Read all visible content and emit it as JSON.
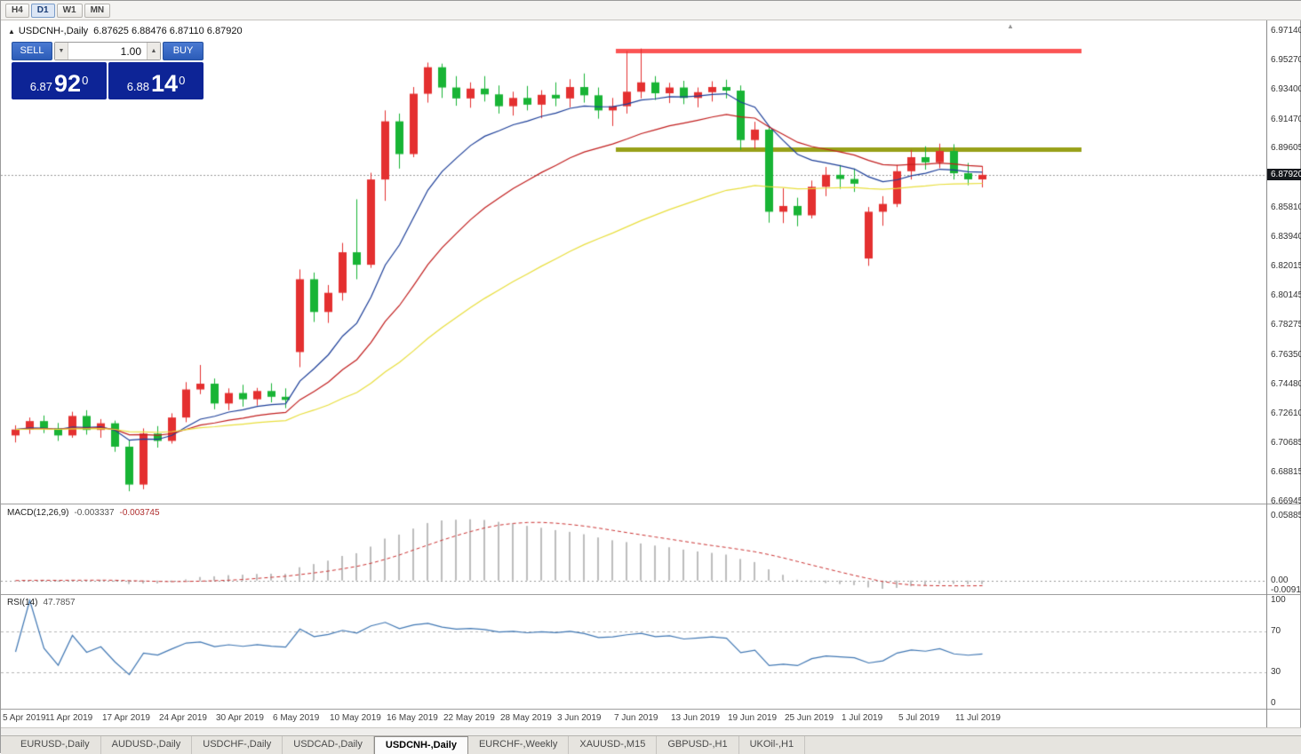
{
  "toolbar": {
    "timeframes": [
      {
        "label": "H4",
        "active": false
      },
      {
        "label": "D1",
        "active": true
      },
      {
        "label": "W1",
        "active": false
      },
      {
        "label": "MN",
        "active": false
      }
    ]
  },
  "chart_title": {
    "symbol": "USDCNH-,Daily",
    "ohlc": "6.87625 6.88476 6.87110 6.87920"
  },
  "one_click": {
    "sell_label": "SELL",
    "buy_label": "BUY",
    "volume": "1.00",
    "sell_price": {
      "prefix": "6.87",
      "pips": "92",
      "pipette": "0"
    },
    "buy_price": {
      "prefix": "6.88",
      "pips": "14",
      "pipette": "0"
    }
  },
  "tabs": [
    {
      "label": "EURUSD-,Daily",
      "active": false
    },
    {
      "label": "AUDUSD-,Daily",
      "active": false
    },
    {
      "label": "USDCHF-,Daily",
      "active": false
    },
    {
      "label": "USDCAD-,Daily",
      "active": false
    },
    {
      "label": "USDCNH-,Daily",
      "active": true
    },
    {
      "label": "EURCHF-,Weekly",
      "active": false
    },
    {
      "label": "XAUUSD-,M15",
      "active": false
    },
    {
      "label": "GBPUSD-,H1",
      "active": false
    },
    {
      "label": "UKOil-,H1",
      "active": false
    }
  ],
  "chart_data": {
    "type": "candlestick",
    "symbol": "USDCNH",
    "timeframe": "Daily",
    "y_axis": {
      "max": 6.9714,
      "min": 6.66945
    },
    "price_ticks": [
      "6.97140",
      "6.95270",
      "6.93400",
      "6.91470",
      "6.89605",
      "6.85810",
      "6.83940",
      "6.82015",
      "6.80145",
      "6.78275",
      "6.76350",
      "6.74480",
      "6.72610",
      "6.70685",
      "6.68815",
      "6.66945"
    ],
    "current_price": 6.8792,
    "current_price_label": "6.87920",
    "colors": {
      "bull": "#e43030",
      "bear": "#18b435",
      "resistance": "#fb5454",
      "support": "#98a018",
      "current_line": "#9a9a9a",
      "macd_hist": "#bdbdbd",
      "macd_signal": "#cc3333",
      "rsi_line": "#4178b4"
    },
    "moving_averages": [
      {
        "period": 10,
        "color": "#1d3f99"
      },
      {
        "period": 20,
        "color": "#c21f1f"
      },
      {
        "period": 45,
        "color": "#e9df3e"
      }
    ],
    "levels": [
      {
        "name": "resistance-line",
        "price": 6.959,
        "from_bar": 43,
        "to_bar": 75,
        "color": "#fb5454",
        "thickness": 5
      },
      {
        "name": "support-line",
        "price": 6.8956,
        "from_bar": 43,
        "to_bar": 75,
        "color": "#98a018",
        "thickness": 5
      }
    ],
    "date_ticks": [
      {
        "label": "5 Apr 2019",
        "bar": 0
      },
      {
        "label": "11 Apr 2019",
        "bar": 4
      },
      {
        "label": "17 Apr 2019",
        "bar": 8
      },
      {
        "label": "24 Apr 2019",
        "bar": 12
      },
      {
        "label": "30 Apr 2019",
        "bar": 16
      },
      {
        "label": "6 May 2019",
        "bar": 20
      },
      {
        "label": "10 May 2019",
        "bar": 24
      },
      {
        "label": "16 May 2019",
        "bar": 28
      },
      {
        "label": "22 May 2019",
        "bar": 32
      },
      {
        "label": "28 May 2019",
        "bar": 36
      },
      {
        "label": "3 Jun 2019",
        "bar": 40
      },
      {
        "label": "7 Jun 2019",
        "bar": 44
      },
      {
        "label": "13 Jun 2019",
        "bar": 48
      },
      {
        "label": "19 Jun 2019",
        "bar": 52
      },
      {
        "label": "25 Jun 2019",
        "bar": 56
      },
      {
        "label": "1 Jul 2019",
        "bar": 60
      },
      {
        "label": "5 Jul 2019",
        "bar": 64
      },
      {
        "label": "11 Jul 2019",
        "bar": 68
      }
    ],
    "macd": {
      "name": "MACD(12,26,9)",
      "fast": 12,
      "slow": 26,
      "signal": 9,
      "value_main": "-0.003337",
      "value_signal": "-0.003745",
      "axis_labels": [
        "0.058851",
        "0.00",
        "-0.009116"
      ],
      "scale_max": 0.058851,
      "scale_min": -0.009116
    },
    "rsi": {
      "name": "RSI(14)",
      "period": 14,
      "value": "47.7857",
      "axis_labels": [
        "100",
        "70",
        "30",
        "0"
      ],
      "guide_levels": [
        70,
        30
      ]
    },
    "candles": [
      {
        "d": "2019.04.05",
        "o": 6.712,
        "h": 6.7185,
        "l": 6.7075,
        "c": 6.7158
      },
      {
        "d": "2019.04.08",
        "o": 6.7158,
        "h": 6.7235,
        "l": 6.713,
        "c": 6.7212
      },
      {
        "d": "2019.04.09",
        "o": 6.7212,
        "h": 6.7248,
        "l": 6.7135,
        "c": 6.7165
      },
      {
        "d": "2019.04.10",
        "o": 6.7165,
        "h": 6.72,
        "l": 6.7085,
        "c": 6.712
      },
      {
        "d": "2019.04.11",
        "o": 6.712,
        "h": 6.7272,
        "l": 6.7105,
        "c": 6.7245
      },
      {
        "d": "2019.04.12",
        "o": 6.7245,
        "h": 6.7282,
        "l": 6.7125,
        "c": 6.7155
      },
      {
        "d": "2019.04.15",
        "o": 6.7155,
        "h": 6.7225,
        "l": 6.7105,
        "c": 6.7198
      },
      {
        "d": "2019.04.16",
        "o": 6.7198,
        "h": 6.7215,
        "l": 6.7015,
        "c": 6.7048
      },
      {
        "d": "2019.04.17",
        "o": 6.7048,
        "h": 6.7092,
        "l": 6.6762,
        "c": 6.6805
      },
      {
        "d": "2019.04.18",
        "o": 6.6805,
        "h": 6.7165,
        "l": 6.6775,
        "c": 6.7132
      },
      {
        "d": "2019.04.22",
        "o": 6.7132,
        "h": 6.718,
        "l": 6.7042,
        "c": 6.7085
      },
      {
        "d": "2019.04.23",
        "o": 6.7085,
        "h": 6.7262,
        "l": 6.7068,
        "c": 6.7235
      },
      {
        "d": "2019.04.24",
        "o": 6.7235,
        "h": 6.7462,
        "l": 6.7205,
        "c": 6.7415
      },
      {
        "d": "2019.04.25",
        "o": 6.7415,
        "h": 6.7572,
        "l": 6.7385,
        "c": 6.7452
      },
      {
        "d": "2019.04.26",
        "o": 6.7452,
        "h": 6.7485,
        "l": 6.7288,
        "c": 6.7325
      },
      {
        "d": "2019.04.29",
        "o": 6.7325,
        "h": 6.7422,
        "l": 6.7282,
        "c": 6.7392
      },
      {
        "d": "2019.04.30",
        "o": 6.7392,
        "h": 6.7445,
        "l": 6.7305,
        "c": 6.7352
      },
      {
        "d": "2019.05.01",
        "o": 6.7352,
        "h": 6.7425,
        "l": 6.7312,
        "c": 6.7405
      },
      {
        "d": "2019.05.02",
        "o": 6.7405,
        "h": 6.7455,
        "l": 6.7332,
        "c": 6.7368
      },
      {
        "d": "2019.05.03",
        "o": 6.7368,
        "h": 6.7422,
        "l": 6.7295,
        "c": 6.7348
      },
      {
        "d": "2019.05.06",
        "o": 6.7655,
        "h": 6.8185,
        "l": 6.7558,
        "c": 6.8122
      },
      {
        "d": "2019.05.07",
        "o": 6.8122,
        "h": 6.8165,
        "l": 6.7848,
        "c": 6.7912
      },
      {
        "d": "2019.05.08",
        "o": 6.7912,
        "h": 6.8085,
        "l": 6.7842,
        "c": 6.8035
      },
      {
        "d": "2019.05.09",
        "o": 6.8035,
        "h": 6.8355,
        "l": 6.7985,
        "c": 6.8295
      },
      {
        "d": "2019.05.10",
        "o": 6.8295,
        "h": 6.8635,
        "l": 6.8122,
        "c": 6.8215
      },
      {
        "d": "2019.05.13",
        "o": 6.8215,
        "h": 6.8805,
        "l": 6.8195,
        "c": 6.8762
      },
      {
        "d": "2019.05.14",
        "o": 6.8762,
        "h": 6.9205,
        "l": 6.8625,
        "c": 6.9135
      },
      {
        "d": "2019.05.15",
        "o": 6.9135,
        "h": 6.9185,
        "l": 6.8832,
        "c": 6.8925
      },
      {
        "d": "2019.05.16",
        "o": 6.8925,
        "h": 6.9355,
        "l": 6.8905,
        "c": 6.9312
      },
      {
        "d": "2019.05.17",
        "o": 6.9312,
        "h": 6.9512,
        "l": 6.9255,
        "c": 6.9482
      },
      {
        "d": "2019.05.20",
        "o": 6.9482,
        "h": 6.9505,
        "l": 6.9285,
        "c": 6.9352
      },
      {
        "d": "2019.05.21",
        "o": 6.9352,
        "h": 6.9425,
        "l": 6.9235,
        "c": 6.9282
      },
      {
        "d": "2019.05.22",
        "o": 6.9282,
        "h": 6.9385,
        "l": 6.9222,
        "c": 6.9345
      },
      {
        "d": "2019.05.23",
        "o": 6.9345,
        "h": 6.9425,
        "l": 6.9262,
        "c": 6.9308
      },
      {
        "d": "2019.05.24",
        "o": 6.9308,
        "h": 6.9365,
        "l": 6.9185,
        "c": 6.9232
      },
      {
        "d": "2019.05.27",
        "o": 6.9232,
        "h": 6.9325,
        "l": 6.9172,
        "c": 6.9285
      },
      {
        "d": "2019.05.28",
        "o": 6.9285,
        "h": 6.9362,
        "l": 6.9205,
        "c": 6.9242
      },
      {
        "d": "2019.05.29",
        "o": 6.9242,
        "h": 6.9335,
        "l": 6.9155,
        "c": 6.9305
      },
      {
        "d": "2019.05.30",
        "o": 6.9305,
        "h": 6.9385,
        "l": 6.9232,
        "c": 6.9282
      },
      {
        "d": "2019.05.31",
        "o": 6.9282,
        "h": 6.9405,
        "l": 6.9225,
        "c": 6.9355
      },
      {
        "d": "2019.06.03",
        "o": 6.9355,
        "h": 6.9442,
        "l": 6.9255,
        "c": 6.9302
      },
      {
        "d": "2019.06.04",
        "o": 6.9302,
        "h": 6.9352,
        "l": 6.9152,
        "c": 6.9205
      },
      {
        "d": "2019.06.05",
        "o": 6.9205,
        "h": 6.9285,
        "l": 6.9105,
        "c": 6.9232
      },
      {
        "d": "2019.06.06",
        "o": 6.9232,
        "h": 6.9585,
        "l": 6.9185,
        "c": 6.9325
      },
      {
        "d": "2019.06.07",
        "o": 6.9325,
        "h": 6.9602,
        "l": 6.9282,
        "c": 6.9385
      },
      {
        "d": "2019.06.10",
        "o": 6.9385,
        "h": 6.9425,
        "l": 6.9272,
        "c": 6.9315
      },
      {
        "d": "2019.06.11",
        "o": 6.9315,
        "h": 6.9382,
        "l": 6.9252,
        "c": 6.9352
      },
      {
        "d": "2019.06.12",
        "o": 6.9352,
        "h": 6.9395,
        "l": 6.9245,
        "c": 6.9285
      },
      {
        "d": "2019.06.13",
        "o": 6.9285,
        "h": 6.9352,
        "l": 6.9225,
        "c": 6.9322
      },
      {
        "d": "2019.06.14",
        "o": 6.9322,
        "h": 6.9392,
        "l": 6.9262,
        "c": 6.9355
      },
      {
        "d": "2019.06.17",
        "o": 6.9355,
        "h": 6.9402,
        "l": 6.9282,
        "c": 6.9332
      },
      {
        "d": "2019.06.18",
        "o": 6.9332,
        "h": 6.9365,
        "l": 6.8952,
        "c": 6.9015
      },
      {
        "d": "2019.06.19",
        "o": 6.9015,
        "h": 6.9132,
        "l": 6.8958,
        "c": 6.9082
      },
      {
        "d": "2019.06.20",
        "o": 6.9082,
        "h": 6.9105,
        "l": 6.8485,
        "c": 6.8555
      },
      {
        "d": "2019.06.21",
        "o": 6.8555,
        "h": 6.8705,
        "l": 6.8482,
        "c": 6.8592
      },
      {
        "d": "2019.06.24",
        "o": 6.8592,
        "h": 6.8645,
        "l": 6.8462,
        "c": 6.8532
      },
      {
        "d": "2019.06.25",
        "o": 6.8532,
        "h": 6.8755,
        "l": 6.8512,
        "c": 6.8715
      },
      {
        "d": "2019.06.26",
        "o": 6.8715,
        "h": 6.8842,
        "l": 6.8655,
        "c": 6.8792
      },
      {
        "d": "2019.06.27",
        "o": 6.8792,
        "h": 6.8855,
        "l": 6.8702,
        "c": 6.8765
      },
      {
        "d": "2019.06.28",
        "o": 6.8765,
        "h": 6.8832,
        "l": 6.8682,
        "c": 6.8735
      },
      {
        "d": "2019.07.01",
        "o": 6.8255,
        "h": 6.8585,
        "l": 6.8208,
        "c": 6.8555
      },
      {
        "d": "2019.07.02",
        "o": 6.8555,
        "h": 6.8655,
        "l": 6.8465,
        "c": 6.8605
      },
      {
        "d": "2019.07.03",
        "o": 6.8605,
        "h": 6.8855,
        "l": 6.8585,
        "c": 6.8815
      },
      {
        "d": "2019.07.04",
        "o": 6.8815,
        "h": 6.8952,
        "l": 6.8762,
        "c": 6.8905
      },
      {
        "d": "2019.07.05",
        "o": 6.8905,
        "h": 6.8975,
        "l": 6.8825,
        "c": 6.8872
      },
      {
        "d": "2019.07.08",
        "o": 6.8872,
        "h": 6.8992,
        "l": 6.8835,
        "c": 6.8945
      },
      {
        "d": "2019.07.09",
        "o": 6.8945,
        "h": 6.8988,
        "l": 6.8762,
        "c": 6.8802
      },
      {
        "d": "2019.07.10",
        "o": 6.8802,
        "h": 6.8868,
        "l": 6.8725,
        "c": 6.8763
      },
      {
        "d": "2019.07.11",
        "o": 6.87625,
        "h": 6.88476,
        "l": 6.8711,
        "c": 6.8792
      }
    ]
  }
}
